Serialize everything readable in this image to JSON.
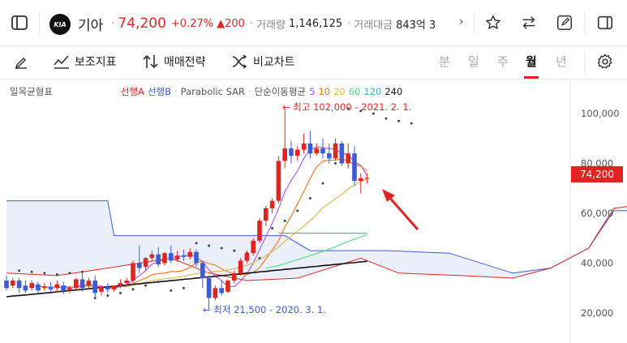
{
  "header": {
    "stock_name": "기아",
    "price": "74,200",
    "change_pct": "+0.27%",
    "change_abs": "▲200",
    "volume_label": "거래량",
    "volume": "1,146,125",
    "amount_label": "거래대금",
    "amount": "843억 3",
    "logo_text": "KIA"
  },
  "toolbar": {
    "indicators_label": "보조지표",
    "strategy_label": "매매전략",
    "compare_label": "비교차트",
    "periods": [
      "분",
      "일",
      "주",
      "월",
      "년"
    ],
    "active_period": "월"
  },
  "legend": {
    "ichimoku": "일목균형표",
    "span_a": "선행A",
    "span_b": "선행B",
    "dot": "·",
    "sar": "Parabolic SAR",
    "ma_label": "단순이동평균",
    "ma_periods": [
      "5",
      "10",
      "20",
      "60",
      "120",
      "240"
    ]
  },
  "annotations": {
    "high": "← 최고 102,000 - 2021. 2. 1.",
    "low": "← 최저 21,500 - 2020. 3. 1."
  },
  "axis": {
    "y_ticks": [
      "100,000",
      "80,000",
      "60,000",
      "40,000",
      "20,000"
    ],
    "current_price_label": "74,200"
  },
  "colors": {
    "up": "#e02424",
    "down": "#3b5bdb",
    "accent": "#e02424"
  },
  "chart_data": {
    "type": "candlestick",
    "ylim": [
      15000,
      108000
    ],
    "y_ticks": [
      20000,
      40000,
      60000,
      80000,
      100000
    ],
    "candles": [
      {
        "o": 33000,
        "h": 35000,
        "c": 30000,
        "l": 29000
      },
      {
        "o": 31000,
        "h": 34000,
        "c": 33000,
        "l": 30000
      },
      {
        "o": 33000,
        "h": 34000,
        "c": 30000,
        "l": 28000
      },
      {
        "o": 31000,
        "h": 33000,
        "c": 29000,
        "l": 28000
      },
      {
        "o": 30000,
        "h": 33000,
        "c": 32000,
        "l": 29000
      },
      {
        "o": 31500,
        "h": 32500,
        "c": 29000,
        "l": 28000
      },
      {
        "o": 30000,
        "h": 32000,
        "c": 30500,
        "l": 29000
      },
      {
        "o": 30500,
        "h": 32500,
        "c": 29500,
        "l": 28500
      },
      {
        "o": 30000,
        "h": 33000,
        "c": 31500,
        "l": 28500
      },
      {
        "o": 31000,
        "h": 32500,
        "c": 29000,
        "l": 27500
      },
      {
        "o": 29000,
        "h": 31000,
        "c": 30000,
        "l": 28000
      },
      {
        "o": 30000,
        "h": 34000,
        "c": 33500,
        "l": 29000
      },
      {
        "o": 33500,
        "h": 36000,
        "c": 30000,
        "l": 28500
      },
      {
        "o": 31000,
        "h": 34000,
        "c": 33000,
        "l": 30000
      },
      {
        "o": 33000,
        "h": 35000,
        "c": 28000,
        "l": 26000
      },
      {
        "o": 28500,
        "h": 31000,
        "c": 30500,
        "l": 27000
      },
      {
        "o": 30500,
        "h": 32000,
        "c": 29500,
        "l": 28000
      },
      {
        "o": 29500,
        "h": 31000,
        "c": 31000,
        "l": 28500
      },
      {
        "o": 31000,
        "h": 33500,
        "c": 32000,
        "l": 30000
      },
      {
        "o": 32000,
        "h": 34000,
        "c": 33000,
        "l": 31000
      },
      {
        "o": 33000,
        "h": 41000,
        "c": 40000,
        "l": 32000
      },
      {
        "o": 40000,
        "h": 47000,
        "c": 38000,
        "l": 36000
      },
      {
        "o": 38500,
        "h": 42500,
        "c": 42000,
        "l": 37000
      },
      {
        "o": 42000,
        "h": 45000,
        "c": 43500,
        "l": 41000
      },
      {
        "o": 43500,
        "h": 46500,
        "c": 39500,
        "l": 38500
      },
      {
        "o": 40000,
        "h": 44500,
        "c": 44000,
        "l": 39000
      },
      {
        "o": 44000,
        "h": 47000,
        "c": 41000,
        "l": 40000
      },
      {
        "o": 41500,
        "h": 45000,
        "c": 43000,
        "l": 40500
      },
      {
        "o": 43000,
        "h": 45500,
        "c": 42500,
        "l": 41000
      },
      {
        "o": 42500,
        "h": 46000,
        "c": 44500,
        "l": 41500
      },
      {
        "o": 44500,
        "h": 45500,
        "c": 40000,
        "l": 38500
      },
      {
        "o": 40000,
        "h": 41000,
        "c": 34000,
        "l": 30000
      },
      {
        "o": 34000,
        "h": 35000,
        "c": 26000,
        "l": 21500
      },
      {
        "o": 26000,
        "h": 31000,
        "c": 30000,
        "l": 25000
      },
      {
        "o": 30000,
        "h": 33000,
        "c": 28000,
        "l": 27000
      },
      {
        "o": 28500,
        "h": 33500,
        "c": 33000,
        "l": 28000
      },
      {
        "o": 33000,
        "h": 37000,
        "c": 36000,
        "l": 32000
      },
      {
        "o": 36000,
        "h": 42000,
        "c": 41000,
        "l": 35000
      },
      {
        "o": 41000,
        "h": 45000,
        "c": 44000,
        "l": 40000
      },
      {
        "o": 44000,
        "h": 50000,
        "c": 49000,
        "l": 43000
      },
      {
        "o": 49000,
        "h": 58000,
        "c": 57000,
        "l": 48000
      },
      {
        "o": 57000,
        "h": 63000,
        "c": 62000,
        "l": 55000
      },
      {
        "o": 62000,
        "h": 66000,
        "c": 65000,
        "l": 60000
      },
      {
        "o": 65000,
        "h": 83000,
        "c": 81000,
        "l": 64000
      },
      {
        "o": 81000,
        "h": 102000,
        "c": 86000,
        "l": 78000
      },
      {
        "o": 86000,
        "h": 89000,
        "c": 83000,
        "l": 80000
      },
      {
        "o": 83000,
        "h": 87000,
        "c": 85500,
        "l": 81000
      },
      {
        "o": 85500,
        "h": 92000,
        "c": 88000,
        "l": 84000
      },
      {
        "o": 88000,
        "h": 93000,
        "c": 84000,
        "l": 82000
      },
      {
        "o": 84000,
        "h": 88000,
        "c": 86000,
        "l": 83000
      },
      {
        "o": 86000,
        "h": 90000,
        "c": 84000,
        "l": 82000
      },
      {
        "o": 84000,
        "h": 88000,
        "c": 82000,
        "l": 80000
      },
      {
        "o": 82000,
        "h": 90000,
        "c": 88000,
        "l": 81000
      },
      {
        "o": 88000,
        "h": 89000,
        "c": 80000,
        "l": 79000
      },
      {
        "o": 80000,
        "h": 88000,
        "c": 84000,
        "l": 78000
      },
      {
        "o": 84000,
        "h": 87000,
        "c": 73000,
        "l": 71000
      },
      {
        "o": 73000,
        "h": 76000,
        "c": 74000,
        "l": 68000
      },
      {
        "o": 74000,
        "h": 76000,
        "c": 74200,
        "l": 72000
      }
    ],
    "ma": [
      {
        "name": "5",
        "color": "#a855f7",
        "values": [
          null,
          null,
          null,
          null,
          31000,
          30500,
          30600,
          30300,
          30500,
          30000,
          30100,
          30700,
          31000,
          31400,
          31100,
          30700,
          30300,
          29800,
          30600,
          31200,
          33200,
          35000,
          37000,
          39600,
          40600,
          41400,
          42200,
          42600,
          43000,
          43300,
          42500,
          40600,
          37300,
          34900,
          32900,
          30600,
          30600,
          32800,
          35800,
          40000,
          45400,
          50600,
          56000,
          61800,
          68600,
          73200,
          77000,
          82000,
          85500,
          86600,
          86400,
          85900,
          85600,
          84000,
          83600,
          80600,
          79200,
          75000
        ]
      },
      {
        "name": "10",
        "color": "#f97316",
        "values": [
          null,
          null,
          null,
          null,
          null,
          null,
          null,
          null,
          null,
          30700,
          30300,
          30600,
          30500,
          30900,
          30500,
          30400,
          30300,
          30100,
          30800,
          30500,
          31700,
          33000,
          34000,
          35400,
          35800,
          36000,
          36600,
          36600,
          37100,
          38300,
          40200,
          40700,
          39800,
          39200,
          37700,
          36500,
          35600,
          35400,
          35400,
          36300,
          38200,
          41700,
          45300,
          48900,
          54600,
          58800,
          63800,
          68800,
          74000,
          78600,
          80900,
          81300,
          81400,
          81800,
          81000,
          79400,
          78900,
          77000
        ]
      },
      {
        "name": "20",
        "color": "#e0b84a",
        "values": [
          null,
          null,
          null,
          null,
          null,
          null,
          null,
          null,
          null,
          null,
          null,
          null,
          null,
          null,
          null,
          null,
          null,
          null,
          null,
          30600,
          31100,
          31800,
          32300,
          33000,
          33400,
          33700,
          34000,
          34300,
          34800,
          35300,
          35800,
          36100,
          36400,
          36600,
          36800,
          37300,
          37700,
          38400,
          39100,
          40100,
          41400,
          43000,
          44600,
          46500,
          48700,
          50800,
          52800,
          54900,
          57100,
          59500,
          62300,
          64100,
          65900,
          67500,
          69800,
          71200,
          72700,
          73800
        ]
      },
      {
        "name": "60",
        "color": "#4ade80",
        "values": [
          null,
          null,
          null,
          null,
          null,
          null,
          null,
          null,
          null,
          null,
          null,
          null,
          null,
          null,
          null,
          null,
          null,
          null,
          null,
          null,
          null,
          null,
          null,
          null,
          null,
          null,
          null,
          null,
          null,
          null,
          null,
          null,
          null,
          null,
          null,
          null,
          null,
          null,
          null,
          null,
          null,
          38000,
          38500,
          39000,
          39800,
          40600,
          41400,
          42200,
          43000,
          43800,
          44700,
          45600,
          46600,
          47700,
          48700,
          49600,
          50500,
          51500
        ]
      },
      {
        "name": "120",
        "color": "#3bb6b8",
        "values": [
          null,
          null,
          null,
          null,
          null,
          null,
          null,
          null,
          null,
          null,
          null,
          null,
          null,
          null,
          null,
          null,
          null,
          null,
          null,
          null,
          null,
          null,
          null,
          null,
          null,
          null,
          null,
          null,
          null,
          null,
          null,
          null,
          null,
          null,
          null,
          null,
          null,
          null,
          null,
          null,
          null,
          null,
          null,
          52000,
          52000,
          52000,
          52000,
          52000,
          52000,
          52000,
          52000,
          52000,
          52000,
          52000,
          52000,
          52000,
          52000,
          52000
        ]
      },
      {
        "name": "240",
        "color": "#111111",
        "values": [
          26500,
          26800,
          27000,
          27200,
          27500,
          27700,
          28000,
          28200,
          28500,
          28700,
          29000,
          29200,
          29500,
          29700,
          30000,
          30200,
          30500,
          30700,
          31000,
          31200,
          31500,
          31700,
          32000,
          32200,
          32500,
          32700,
          33000,
          33200,
          33500,
          33700,
          34000,
          34200,
          34500,
          34700,
          35000,
          35200,
          35500,
          35700,
          36000,
          36200,
          36500,
          36700,
          37000,
          37200,
          37500,
          37700,
          38000,
          38200,
          38500,
          38700,
          39000,
          39200,
          39500,
          39700,
          40000,
          40200,
          40500,
          40700
        ]
      }
    ],
    "ichimoku": {
      "span_a_color": "#e02424",
      "span_b_color": "#3b5bdb",
      "span_a": [
        [
          0,
          36000
        ],
        [
          8,
          35000
        ],
        [
          16,
          38000
        ],
        [
          26,
          42000
        ],
        [
          32,
          36000
        ],
        [
          38,
          33000
        ],
        [
          46,
          34000
        ],
        [
          56,
          42000
        ],
        [
          62,
          36000
        ],
        [
          72,
          35000
        ],
        [
          80,
          34000
        ],
        [
          86,
          38000
        ],
        [
          92,
          46000
        ],
        [
          96,
          62000
        ],
        [
          102,
          64000
        ],
        [
          110,
          65000
        ],
        [
          118,
          71000
        ],
        [
          124,
          75000
        ],
        [
          130,
          73000
        ],
        [
          140,
          72000
        ],
        [
          146,
          70000
        ]
      ],
      "span_b": [
        [
          0,
          65000
        ],
        [
          16,
          65000
        ],
        [
          17,
          51000
        ],
        [
          26,
          51000
        ],
        [
          44,
          51000
        ],
        [
          48,
          45000
        ],
        [
          60,
          45000
        ],
        [
          70,
          44000
        ],
        [
          80,
          36000
        ],
        [
          86,
          38000
        ],
        [
          92,
          46000
        ],
        [
          96,
          61000
        ],
        [
          146,
          61000
        ]
      ]
    },
    "sar": [
      [
        2,
        37000
      ],
      [
        4,
        36500
      ],
      [
        6,
        36000
      ],
      [
        8,
        35500
      ],
      [
        10,
        36000
      ],
      [
        12,
        36500
      ],
      [
        14,
        26000
      ],
      [
        16,
        27000
      ],
      [
        18,
        28000
      ],
      [
        20,
        29500
      ],
      [
        22,
        31000
      ],
      [
        24,
        32500
      ],
      [
        26,
        29000
      ],
      [
        28,
        30000
      ],
      [
        30,
        48000
      ],
      [
        32,
        47000
      ],
      [
        34,
        46000
      ],
      [
        36,
        45000
      ],
      [
        38,
        44000
      ],
      [
        40,
        42000
      ],
      [
        42,
        54000
      ],
      [
        44,
        57000
      ],
      [
        46,
        61000
      ],
      [
        48,
        66000
      ],
      [
        50,
        72000
      ],
      [
        52,
        80000
      ],
      [
        54,
        102000
      ],
      [
        56,
        101000
      ],
      [
        58,
        100000
      ],
      [
        60,
        98000
      ],
      [
        62,
        97000
      ],
      [
        64,
        96000
      ]
    ]
  }
}
